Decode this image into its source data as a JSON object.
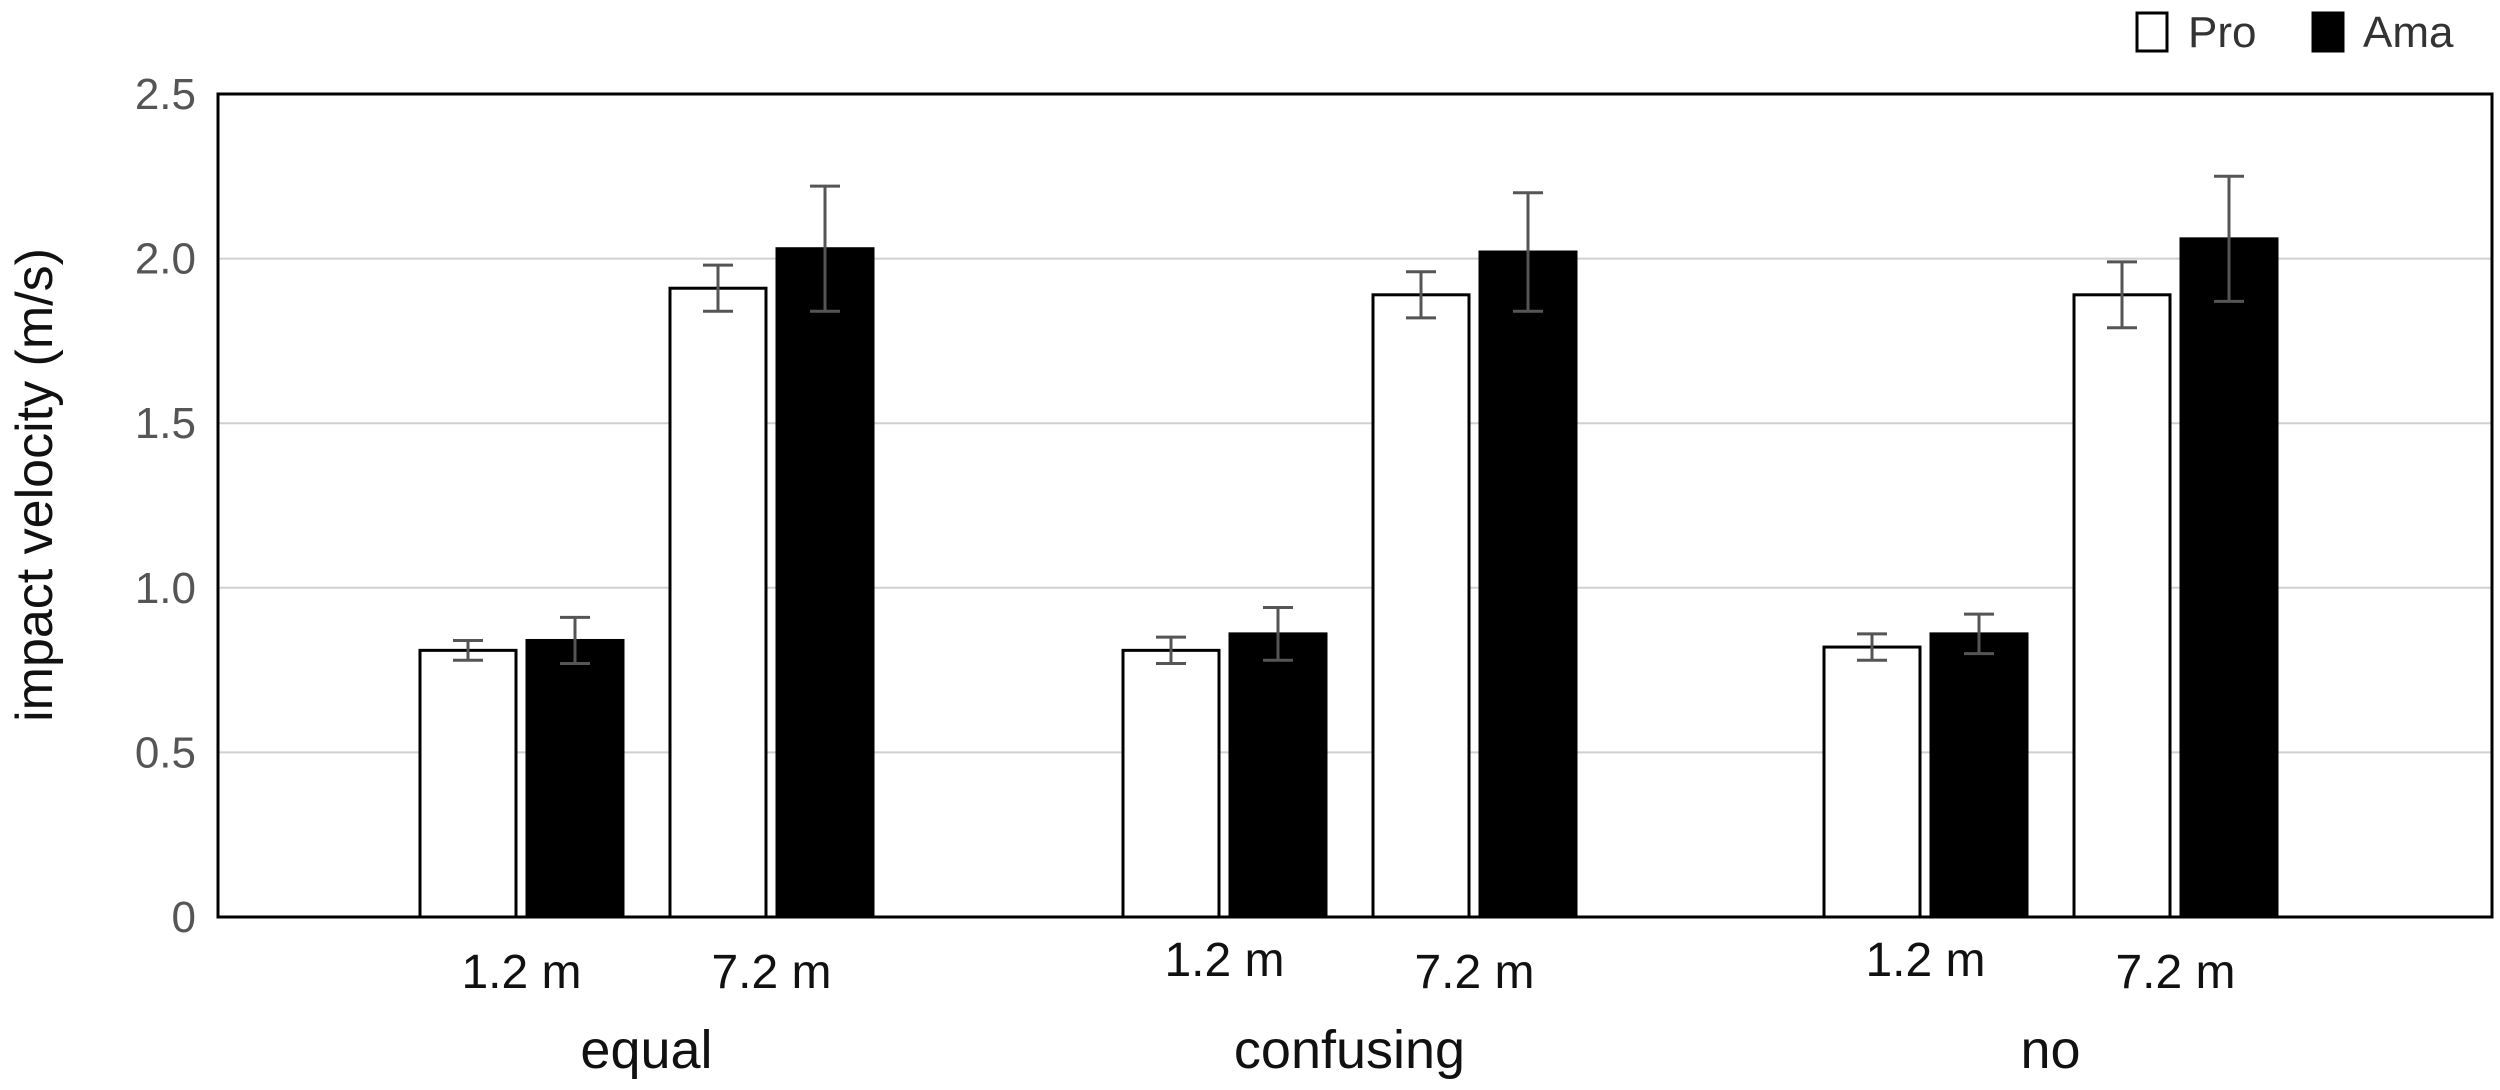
{
  "chart_data": {
    "type": "bar",
    "title": "",
    "ylabel": "impact velocity (m/s)",
    "xlabel": "",
    "ylim": [
      0,
      2.5
    ],
    "yticks": [
      0,
      0.5,
      1.0,
      1.5,
      2.0,
      2.5
    ],
    "ytick_labels": [
      "0",
      "0.5",
      "1.0",
      "1.5",
      "2.0",
      "2.5"
    ],
    "grid": true,
    "legend_position": "top-right",
    "groups": [
      "equal",
      "confusing",
      "no"
    ],
    "categories": [
      "1.2 m",
      "7.2 m"
    ],
    "series": [
      {
        "name": "Pro",
        "color": "#ffffff",
        "values": [
          [
            0.81,
            1.91
          ],
          [
            0.81,
            1.89
          ],
          [
            0.82,
            1.89
          ]
        ],
        "errors": [
          [
            0.03,
            0.07
          ],
          [
            0.04,
            0.07
          ],
          [
            0.04,
            0.1
          ]
        ]
      },
      {
        "name": "Ama",
        "color": "#000000",
        "values": [
          [
            0.84,
            2.03
          ],
          [
            0.86,
            2.02
          ],
          [
            0.86,
            2.06
          ]
        ],
        "errors": [
          [
            0.07,
            0.19
          ],
          [
            0.08,
            0.18
          ],
          [
            0.06,
            0.19
          ]
        ]
      }
    ]
  }
}
